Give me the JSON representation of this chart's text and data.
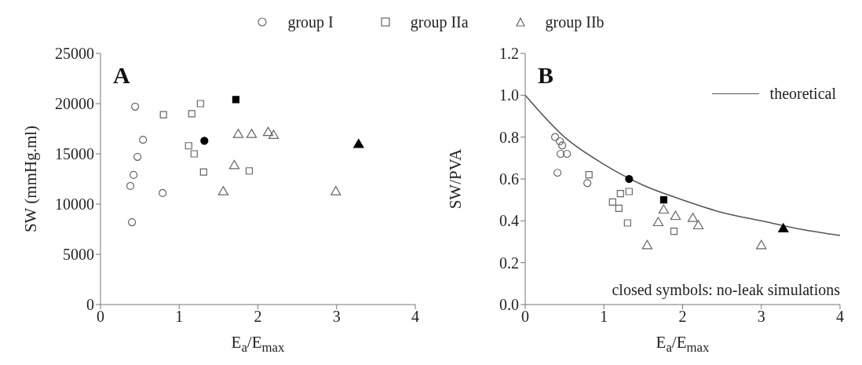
{
  "chart_data": [
    {
      "type": "scatter",
      "title": "A",
      "xlabel": "E$_{a}$/E$_{max}$",
      "ylabel": "SW (mmHg.ml)",
      "xlim": [
        0,
        4
      ],
      "xticks": [
        0,
        1,
        2,
        3,
        4
      ],
      "ylim": [
        0,
        25000
      ],
      "yticks": [
        0,
        5000,
        10000,
        15000,
        20000,
        25000
      ],
      "legend": "top",
      "grid": false,
      "series": [
        {
          "name": "group I",
          "color": "#666666",
          "marker": "circle",
          "x": [
            0.4,
            0.38,
            0.42,
            0.47,
            0.54,
            0.79,
            0.44
          ],
          "values": [
            8200,
            11800,
            12900,
            14700,
            16400,
            11100,
            19700
          ]
        },
        {
          "name": "group IIa",
          "color": "#666666",
          "marker": "square",
          "x": [
            1.12,
            1.19,
            1.31,
            1.89,
            0.8,
            1.16,
            1.27
          ],
          "values": [
            15800,
            15000,
            13200,
            13300,
            18900,
            19000,
            20000
          ]
        },
        {
          "name": "group IIb",
          "color": "#666666",
          "marker": "triangle",
          "x": [
            1.75,
            1.92,
            2.13,
            2.2,
            1.7,
            1.56,
            2.99
          ],
          "values": [
            16900,
            16900,
            17100,
            16800,
            13800,
            11200,
            11200
          ]
        },
        {
          "color": "#000000",
          "marker": "circle",
          "x": [
            1.32
          ],
          "values": [
            16300
          ]
        },
        {
          "color": "#000000",
          "marker": "square",
          "x": [
            1.72
          ],
          "values": [
            20400
          ]
        },
        {
          "color": "#000000",
          "marker": "triangle",
          "x": [
            3.28
          ],
          "values": [
            15900
          ]
        }
      ]
    },
    {
      "type": "scatter",
      "title": "B",
      "xlabel": "E$_{a}$/E$_{max}$",
      "ylabel": "SW/PVA",
      "xlim": [
        0,
        4
      ],
      "xticks": [
        0,
        1,
        2,
        3,
        4
      ],
      "ylim": [
        0,
        1.2
      ],
      "yticks": [
        {
          "value": 0,
          "label": "0.0"
        },
        0.2,
        0.4,
        0.6,
        0.8,
        {
          "value": 1,
          "label": "1.0"
        },
        1.2
      ],
      "legend": "top right",
      "grid": false,
      "annotations": [
        "closed symbols: no-leak simulations"
      ],
      "series": [
        {
          "color": "#666666",
          "marker": "circle",
          "x": [
            0.38,
            0.44,
            0.47,
            0.45,
            0.53,
            0.41,
            0.79
          ],
          "values": [
            0.8,
            0.78,
            0.76,
            0.72,
            0.72,
            0.63,
            0.58
          ]
        },
        {
          "color": "#666666",
          "marker": "square",
          "x": [
            0.81,
            1.11,
            1.21,
            1.32,
            1.19,
            1.3,
            1.89
          ],
          "values": [
            0.62,
            0.49,
            0.53,
            0.54,
            0.46,
            0.39,
            0.35
          ]
        },
        {
          "color": "#666666",
          "marker": "triangle",
          "x": [
            1.76,
            1.69,
            1.91,
            2.13,
            2.2,
            1.55,
            3.0
          ],
          "values": [
            0.45,
            0.39,
            0.42,
            0.41,
            0.375,
            0.28,
            0.28
          ]
        },
        {
          "color": "#000000",
          "marker": "circle",
          "x": [
            1.32
          ],
          "values": [
            0.6
          ]
        },
        {
          "color": "#000000",
          "marker": "square",
          "x": [
            1.76
          ],
          "values": [
            0.5
          ]
        },
        {
          "color": "#000000",
          "marker": "triangle",
          "x": [
            3.28
          ],
          "values": [
            0.36
          ]
        },
        {
          "type": "line",
          "name": "theoretical",
          "color": "#555555",
          "marker": "none",
          "x": [
            0,
            0.5,
            1,
            1.5,
            2,
            2.5,
            3,
            3.5,
            4
          ],
          "values": [
            1.0,
            0.8,
            0.67,
            0.57,
            0.5,
            0.44,
            0.4,
            0.36,
            0.33
          ]
        }
      ]
    }
  ]
}
